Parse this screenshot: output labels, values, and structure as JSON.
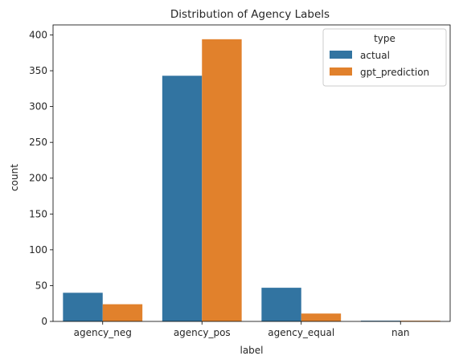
{
  "chart_data": {
    "type": "bar",
    "title": "Distribution of Agency Labels",
    "xlabel": "label",
    "ylabel": "count",
    "categories": [
      "agency_neg",
      "agency_pos",
      "agency_equal",
      "nan"
    ],
    "series": [
      {
        "name": "actual",
        "color": "#3274a1",
        "values": [
          40,
          343,
          47,
          1
        ]
      },
      {
        "name": "gpt_prediction",
        "color": "#e1812c",
        "values": [
          24,
          394,
          11,
          1
        ]
      }
    ],
    "ylim": [
      0,
      414
    ],
    "yticks": [
      0,
      50,
      100,
      150,
      200,
      250,
      300,
      350,
      400
    ],
    "grid": false,
    "legend": {
      "title": "type",
      "placement": "top-right"
    }
  }
}
